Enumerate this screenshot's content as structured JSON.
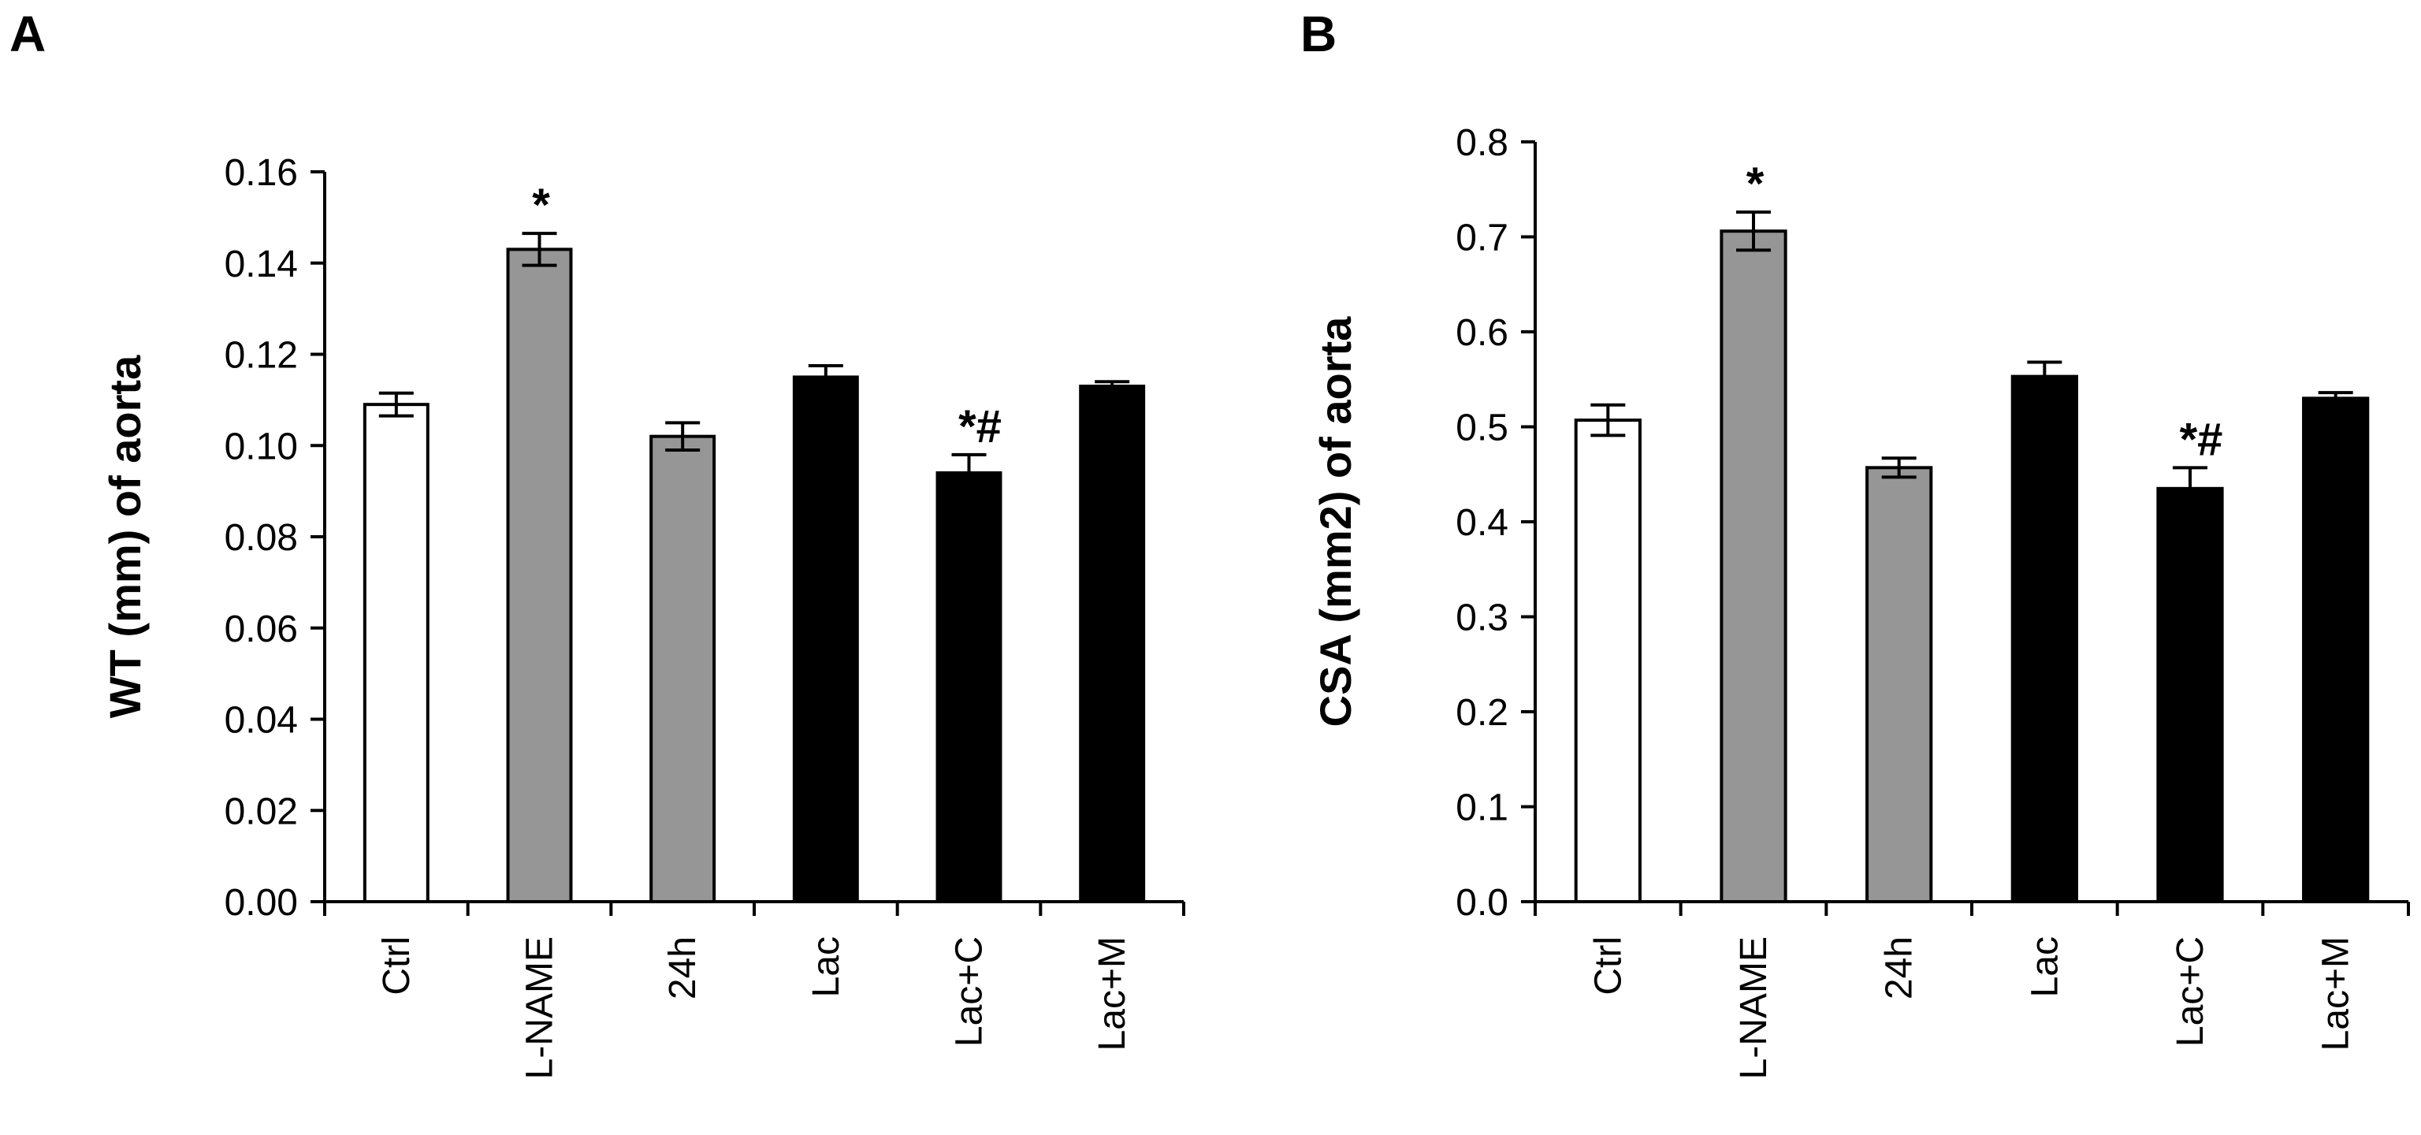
{
  "chart_data": [
    {
      "panel_label": "A",
      "type": "bar",
      "ylabel": "WT (mm) of aorta",
      "ylim": [
        0,
        0.16
      ],
      "yticks": [
        "0.00",
        "0.02",
        "0.04",
        "0.06",
        "0.08",
        "0.10",
        "0.12",
        "0.14",
        "0.16"
      ],
      "ytick_values": [
        0,
        0.02,
        0.04,
        0.06,
        0.08,
        0.1,
        0.12,
        0.14,
        0.16
      ],
      "categories": [
        "Ctrl",
        "L-NAME",
        "24h",
        "Lac",
        "Lac+C",
        "Lac+M"
      ],
      "values": [
        0.109,
        0.143,
        0.102,
        0.115,
        0.094,
        0.113
      ],
      "errors": [
        0.0025,
        0.0035,
        0.003,
        0.0025,
        0.004,
        0.001
      ],
      "fills": [
        "#ffffff",
        "#969696",
        "#969696",
        "#000000",
        "#000000",
        "#000000"
      ],
      "annotations": [
        "",
        "*",
        "",
        "",
        "*#",
        ""
      ]
    },
    {
      "panel_label": "B",
      "type": "bar",
      "ylabel": "CSA (mm2) of aorta",
      "ylim": [
        0,
        0.8
      ],
      "yticks": [
        "0.0",
        "0.1",
        "0.2",
        "0.3",
        "0.4",
        "0.5",
        "0.6",
        "0.7",
        "0.8"
      ],
      "ytick_values": [
        0,
        0.1,
        0.2,
        0.3,
        0.4,
        0.5,
        0.6,
        0.7,
        0.8
      ],
      "categories": [
        "Ctrl",
        "L-NAME",
        "24h",
        "Lac",
        "Lac+C",
        "Lac+M"
      ],
      "values": [
        0.507,
        0.706,
        0.457,
        0.553,
        0.435,
        0.53
      ],
      "errors": [
        0.016,
        0.02,
        0.01,
        0.015,
        0.022,
        0.006
      ],
      "fills": [
        "#ffffff",
        "#969696",
        "#969696",
        "#000000",
        "#000000",
        "#000000"
      ],
      "annotations": [
        "",
        "*",
        "",
        "",
        "*#",
        ""
      ]
    }
  ]
}
